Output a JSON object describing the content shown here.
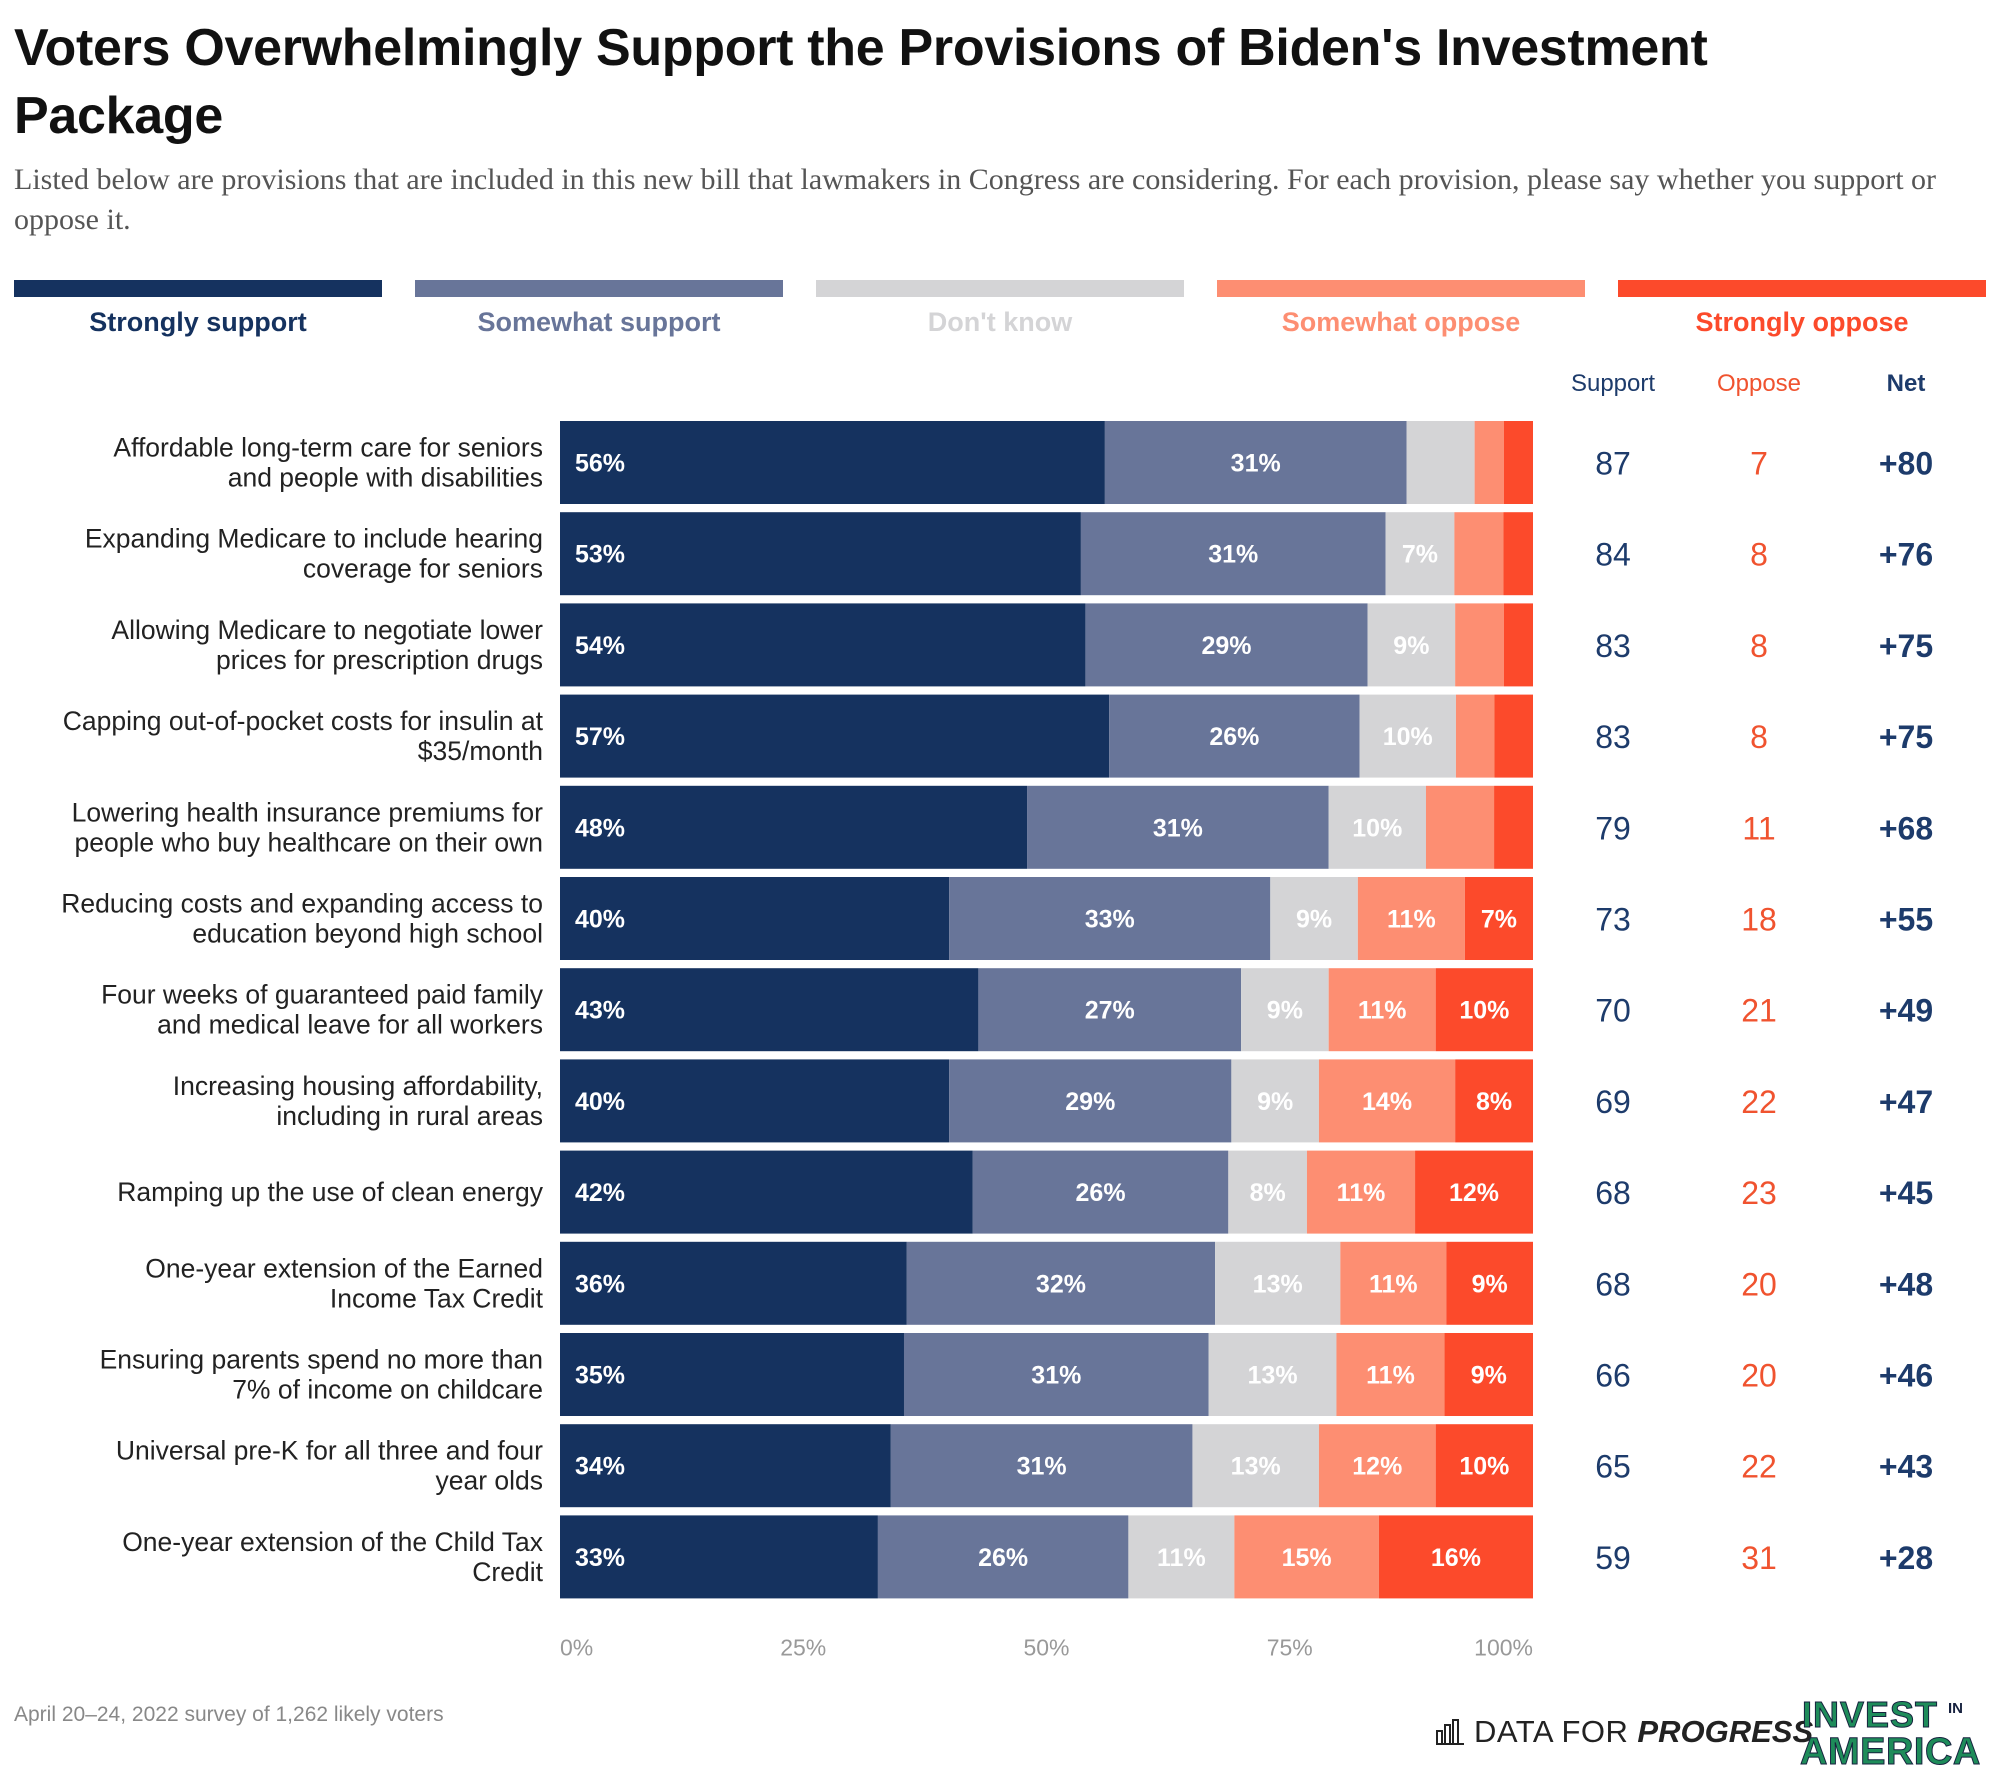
{
  "title": "Voters Overwhelmingly Support the Provisions of Biden's Investment Package",
  "subtitle": "Listed below are provisions that are included in this new bill that lawmakers in Congress are considering. For each provision, please say whether you support or oppose it.",
  "colors": {
    "strongly_support": "#15325f",
    "somewhat_support": "#687599",
    "dont_know": "#d4d4d6",
    "somewhat_oppose": "#fd8e72",
    "strongly_oppose": "#fc4a2b",
    "support_text": "#1d3b6b",
    "oppose_text": "#f0532f"
  },
  "legend": [
    {
      "label": "Strongly support",
      "color": "#15325f",
      "text_color": "#15325f"
    },
    {
      "label": "Somewhat support",
      "color": "#687599",
      "text_color": "#687599"
    },
    {
      "label": "Don't know",
      "color": "#d4d4d6",
      "text_color": "#d4d4d6"
    },
    {
      "label": "Somewhat oppose",
      "color": "#fd8e72",
      "text_color": "#fd8e72"
    },
    {
      "label": "Strongly oppose",
      "color": "#fc4a2b",
      "text_color": "#fc4a2b"
    }
  ],
  "columns": {
    "support": "Support",
    "oppose": "Oppose",
    "net": "Net"
  },
  "chart_data": {
    "type": "bar",
    "orientation": "horizontal",
    "stacked": true,
    "title": "Voters Overwhelmingly Support the Provisions of Biden's Investment Package",
    "xlim": [
      0,
      100
    ],
    "x_ticks": [
      "0%",
      "25%",
      "50%",
      "75%",
      "100%"
    ],
    "series_names": [
      "Strongly support",
      "Somewhat support",
      "Don't know",
      "Somewhat oppose",
      "Strongly oppose"
    ],
    "rows": [
      {
        "label": [
          "Affordable long-term care for seniors",
          "and people with disabilities"
        ],
        "values": [
          56,
          31,
          7,
          3,
          3
        ],
        "labels": [
          "56%",
          "31%",
          "",
          "",
          ""
        ],
        "support": "87",
        "oppose": "7",
        "net": "+80"
      },
      {
        "label": [
          "Expanding Medicare to include hearing",
          "coverage for seniors"
        ],
        "values": [
          53,
          31,
          7,
          5,
          3
        ],
        "labels": [
          "53%",
          "31%",
          "7%",
          "",
          ""
        ],
        "support": "84",
        "oppose": "8",
        "net": "+76"
      },
      {
        "label": [
          "Allowing Medicare to negotiate lower",
          "prices for prescription drugs"
        ],
        "values": [
          54,
          29,
          9,
          5,
          3
        ],
        "labels": [
          "54%",
          "29%",
          "9%",
          "",
          ""
        ],
        "support": "83",
        "oppose": "8",
        "net": "+75"
      },
      {
        "label": [
          "Capping out-of-pocket costs for insulin at",
          "$35/month"
        ],
        "values": [
          57,
          26,
          10,
          4,
          4
        ],
        "labels": [
          "57%",
          "26%",
          "10%",
          "",
          ""
        ],
        "support": "83",
        "oppose": "8",
        "net": "+75"
      },
      {
        "label": [
          "Lowering health insurance premiums for",
          "people who buy healthcare on their own"
        ],
        "values": [
          48,
          31,
          10,
          7,
          4
        ],
        "labels": [
          "48%",
          "31%",
          "10%",
          "",
          ""
        ],
        "support": "79",
        "oppose": "11",
        "net": "+68"
      },
      {
        "label": [
          "Reducing costs and expanding access to",
          "education beyond high school"
        ],
        "values": [
          40,
          33,
          9,
          11,
          7
        ],
        "labels": [
          "40%",
          "33%",
          "9%",
          "11%",
          "7%"
        ],
        "support": "73",
        "oppose": "18",
        "net": "+55"
      },
      {
        "label": [
          "Four weeks of guaranteed paid family",
          "and medical leave for all workers"
        ],
        "values": [
          43,
          27,
          9,
          11,
          10
        ],
        "labels": [
          "43%",
          "27%",
          "9%",
          "11%",
          "10%"
        ],
        "support": "70",
        "oppose": "21",
        "net": "+49"
      },
      {
        "label": [
          "Increasing housing affordability,",
          "including in rural areas"
        ],
        "values": [
          40,
          29,
          9,
          14,
          8
        ],
        "labels": [
          "40%",
          "29%",
          "9%",
          "14%",
          "8%"
        ],
        "support": "69",
        "oppose": "22",
        "net": "+47"
      },
      {
        "label": [
          "Ramping up the use of clean energy"
        ],
        "values": [
          42,
          26,
          8,
          11,
          12
        ],
        "labels": [
          "42%",
          "26%",
          "8%",
          "11%",
          "12%"
        ],
        "support": "68",
        "oppose": "23",
        "net": "+45"
      },
      {
        "label": [
          "One-year extension of the Earned",
          "Income Tax Credit"
        ],
        "values": [
          36,
          32,
          13,
          11,
          9
        ],
        "labels": [
          "36%",
          "32%",
          "13%",
          "11%",
          "9%"
        ],
        "support": "68",
        "oppose": "20",
        "net": "+48"
      },
      {
        "label": [
          "Ensuring parents spend no more than",
          "7% of income on childcare"
        ],
        "values": [
          35,
          31,
          13,
          11,
          9
        ],
        "labels": [
          "35%",
          "31%",
          "13%",
          "11%",
          "9%"
        ],
        "support": "66",
        "oppose": "20",
        "net": "+46"
      },
      {
        "label": [
          "Universal pre-K for all three and four",
          "year olds"
        ],
        "values": [
          34,
          31,
          13,
          12,
          10
        ],
        "labels": [
          "34%",
          "31%",
          "13%",
          "12%",
          "10%"
        ],
        "support": "65",
        "oppose": "22",
        "net": "+43"
      },
      {
        "label": [
          "One-year extension of the Child Tax",
          "Credit"
        ],
        "values": [
          33,
          26,
          11,
          15,
          16
        ],
        "labels": [
          "33%",
          "26%",
          "11%",
          "15%",
          "16%"
        ],
        "support": "59",
        "oppose": "31",
        "net": "+28"
      }
    ]
  },
  "footnote": "April 20–24, 2022 survey of 1,262 likely voters",
  "logos": {
    "dfp_data_for": "DATA FOR",
    "dfp_progress": "PROGRESS",
    "invest_top": "INVEST",
    "invest_in": "IN",
    "invest_bottom": "AMERICA"
  }
}
